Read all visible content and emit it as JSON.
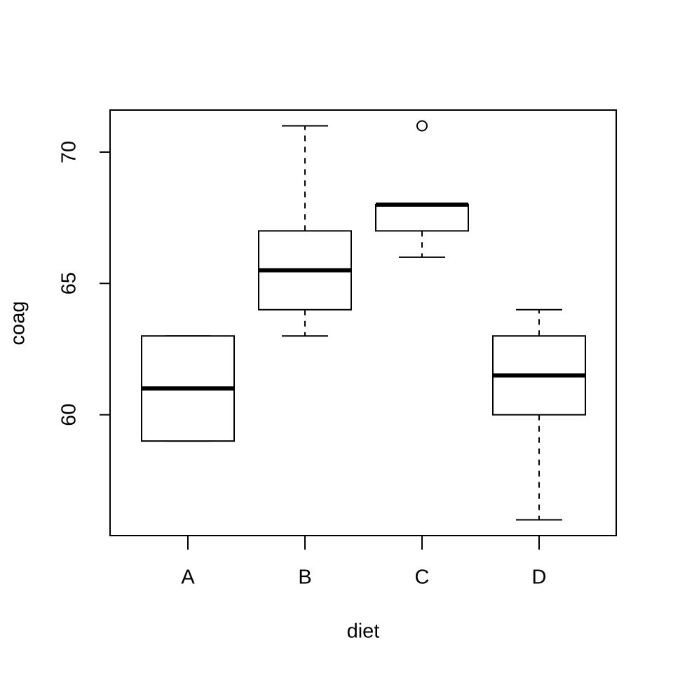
{
  "chart_data": {
    "type": "box",
    "x_label": "diet",
    "y_label": "coag",
    "categories": [
      "A",
      "B",
      "C",
      "D"
    ],
    "boxes": [
      {
        "whisker_low": 59,
        "q1": 59,
        "median": 61,
        "q3": 63,
        "whisker_high": 63,
        "outliers": []
      },
      {
        "whisker_low": 63,
        "q1": 64,
        "median": 65.5,
        "q3": 67,
        "whisker_high": 71,
        "outliers": []
      },
      {
        "whisker_low": 66,
        "q1": 67,
        "median": 68,
        "q3": 68,
        "whisker_high": 68,
        "outliers": [
          71
        ]
      },
      {
        "whisker_low": 56,
        "q1": 60,
        "median": 61.5,
        "q3": 63,
        "whisker_high": 64,
        "outliers": []
      }
    ],
    "color": "#000000",
    "ylim": [
      55.4,
      71.6
    ],
    "yticks": [
      60,
      65,
      70
    ]
  }
}
